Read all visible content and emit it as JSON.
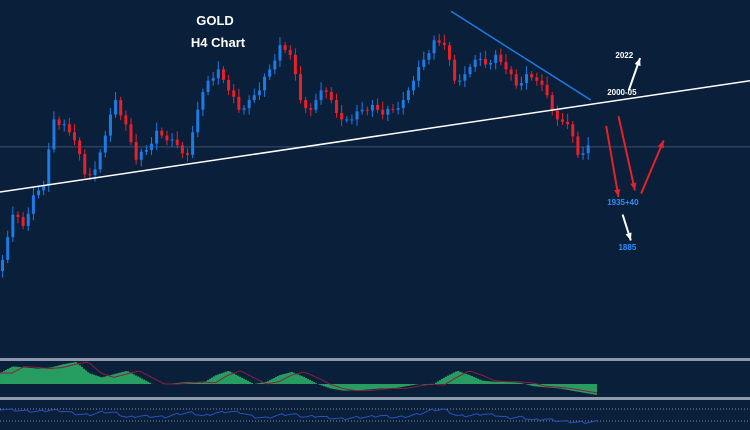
{
  "chart_data": {
    "type": "candlestick",
    "title": "GOLD",
    "subtitle": "H4 Chart",
    "ylim": [
      1842,
      2062
    ],
    "closes": [
      1901,
      1929,
      1922,
      1941,
      1947,
      1988,
      1985,
      1975,
      1954,
      1957,
      1978,
      2000,
      1985,
      1963,
      1969,
      1981,
      1975,
      1972,
      1966,
      1994,
      2012,
      2019,
      2006,
      1994,
      2000,
      2006,
      2019,
      2034,
      2028,
      2000,
      1994,
      2006,
      2000,
      1988,
      1988,
      1994,
      1997,
      1991,
      1994,
      2000,
      2012,
      2025,
      2037,
      2034,
      2012,
      2016,
      2025,
      2022,
      2028,
      2019,
      2009,
      2016,
      2012,
      2003,
      1988,
      1985,
      1966,
      1972
    ],
    "x_range": [
      0,
      73
    ],
    "horizontal_level": 1971,
    "trendlines": [
      {
        "name": "support",
        "color": "#ffffff",
        "from": [
          0,
          1943
        ],
        "to": [
          73,
          2012
        ]
      },
      {
        "name": "resistance",
        "color": "#1e7be6",
        "from": [
          43.9,
          2055
        ],
        "to": [
          57.5,
          2000
        ]
      }
    ],
    "arrows": [
      {
        "color": "#ffffff",
        "from": [
          61.2,
          2006
        ],
        "to": [
          62.3,
          2026
        ]
      },
      {
        "color": "#e8202a",
        "from": [
          59.0,
          1984
        ],
        "to": [
          60.2,
          1940
        ]
      },
      {
        "color": "#e8202a",
        "from": [
          60.2,
          1990
        ],
        "to": [
          61.8,
          1944
        ]
      },
      {
        "color": "#e8202a",
        "from": [
          62.4,
          1942
        ],
        "to": [
          64.6,
          1975
        ]
      },
      {
        "color": "#ffffff",
        "from": [
          60.6,
          1929
        ],
        "to": [
          61.4,
          1913
        ]
      }
    ],
    "annotations": [
      {
        "text": "2022",
        "at": [
          59.9,
          2026
        ],
        "color": "#ffffff"
      },
      {
        "text": "2000-05",
        "at": [
          59.1,
          2003
        ],
        "color": "#ffffff"
      },
      {
        "text": "1935+40",
        "at": [
          59.1,
          1935
        ],
        "color": "#2f8fff"
      },
      {
        "text": "1885",
        "at": [
          60.2,
          1907
        ],
        "color": "#2f8fff"
      }
    ],
    "macd_histogram": [
      0.5,
      0.8,
      0.75,
      0.7,
      0.75,
      0.9,
      1.0,
      0.5,
      0.3,
      0.45,
      0.6,
      0.3,
      0.0,
      0.0,
      0.05,
      0.1,
      0.05,
      0.4,
      0.6,
      0.3,
      0.0,
      0.1,
      0.4,
      0.55,
      0.3,
      0.0,
      -0.2,
      -0.3,
      -0.3,
      -0.25,
      -0.2,
      -0.2,
      -0.1,
      0.0,
      -0.05,
      0.3,
      0.6,
      0.4,
      0.15,
      0.1,
      0.1,
      0.05,
      -0.1,
      -0.15,
      -0.2,
      -0.3,
      -0.4,
      -0.5
    ],
    "rsi": [
      62,
      60,
      58,
      57,
      60,
      58,
      52,
      50,
      56,
      55,
      45,
      48,
      47,
      46,
      52,
      55,
      48,
      54,
      57,
      55,
      46,
      44,
      50,
      52,
      46,
      48,
      44,
      42,
      45,
      46,
      49,
      45,
      47,
      52,
      60,
      61,
      48,
      49,
      52,
      50,
      44,
      46,
      40,
      42,
      38,
      36,
      35,
      37
    ]
  },
  "colors": {
    "background": "#0a1f3a",
    "up": "#1e7be6",
    "down": "#e8202a",
    "histogram": "#2ebd6b",
    "signal": "#8b1e3f",
    "rsi": "#2952b8"
  }
}
